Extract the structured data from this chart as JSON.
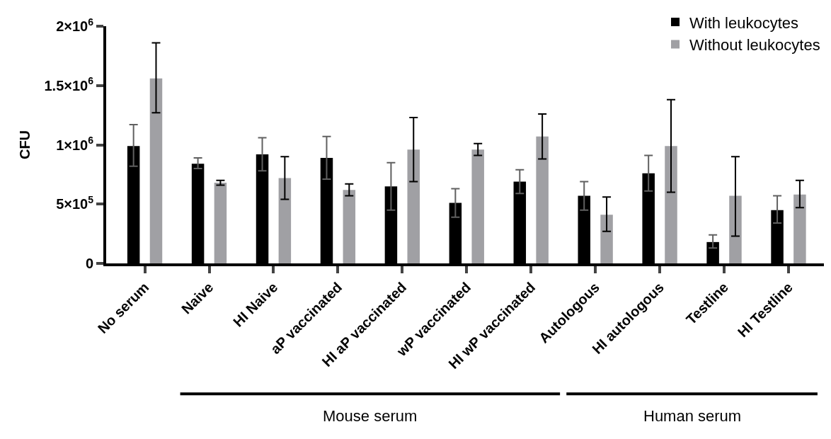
{
  "chart_data": {
    "type": "bar",
    "ylabel": "CFU",
    "categories": [
      "No serum",
      "Naive",
      "HI Naive",
      "aP vaccinated",
      "HI aP vaccinated",
      "wP vaccinated",
      "HI wP vaccinated",
      "Autologous",
      "HI autologous",
      "Testline",
      "HI Testline"
    ],
    "series": [
      {
        "name": "With leukocytes",
        "color": "#000000",
        "values": [
          990000,
          840000,
          920000,
          890000,
          650000,
          510000,
          690000,
          570000,
          760000,
          180000,
          450000
        ],
        "errors": [
          [
            820000,
            1170000
          ],
          [
            800000,
            890000
          ],
          [
            780000,
            1060000
          ],
          [
            710000,
            1070000
          ],
          [
            450000,
            850000
          ],
          [
            390000,
            630000
          ],
          [
            590000,
            790000
          ],
          [
            450000,
            690000
          ],
          [
            610000,
            910000
          ],
          [
            130000,
            240000
          ],
          [
            340000,
            570000
          ]
        ]
      },
      {
        "name": "Without leukocytes",
        "color": "#a0a0a4",
        "values": [
          1560000,
          680000,
          720000,
          620000,
          960000,
          960000,
          1070000,
          410000,
          990000,
          570000,
          580000
        ],
        "errors": [
          [
            1270000,
            1860000
          ],
          [
            660000,
            700000
          ],
          [
            540000,
            900000
          ],
          [
            570000,
            670000
          ],
          [
            690000,
            1230000
          ],
          [
            910000,
            1010000
          ],
          [
            880000,
            1260000
          ],
          [
            270000,
            560000
          ],
          [
            600000,
            1380000
          ],
          [
            230000,
            900000
          ],
          [
            470000,
            700000
          ]
        ]
      }
    ],
    "ylim": [
      0,
      2000000
    ],
    "yticks": [
      0,
      {
        "value": 500000,
        "label": "5×10$^{5}$"
      },
      {
        "value": 1000000,
        "label": "1×10$^{6}$"
      },
      {
        "value": 1500000,
        "label": "1.5×10$^{6}$"
      },
      {
        "value": 2000000,
        "label": "2×10$^{6}$"
      }
    ],
    "legend": "top right",
    "annotations": [
      "Mouse serum",
      "Human serum"
    ]
  }
}
